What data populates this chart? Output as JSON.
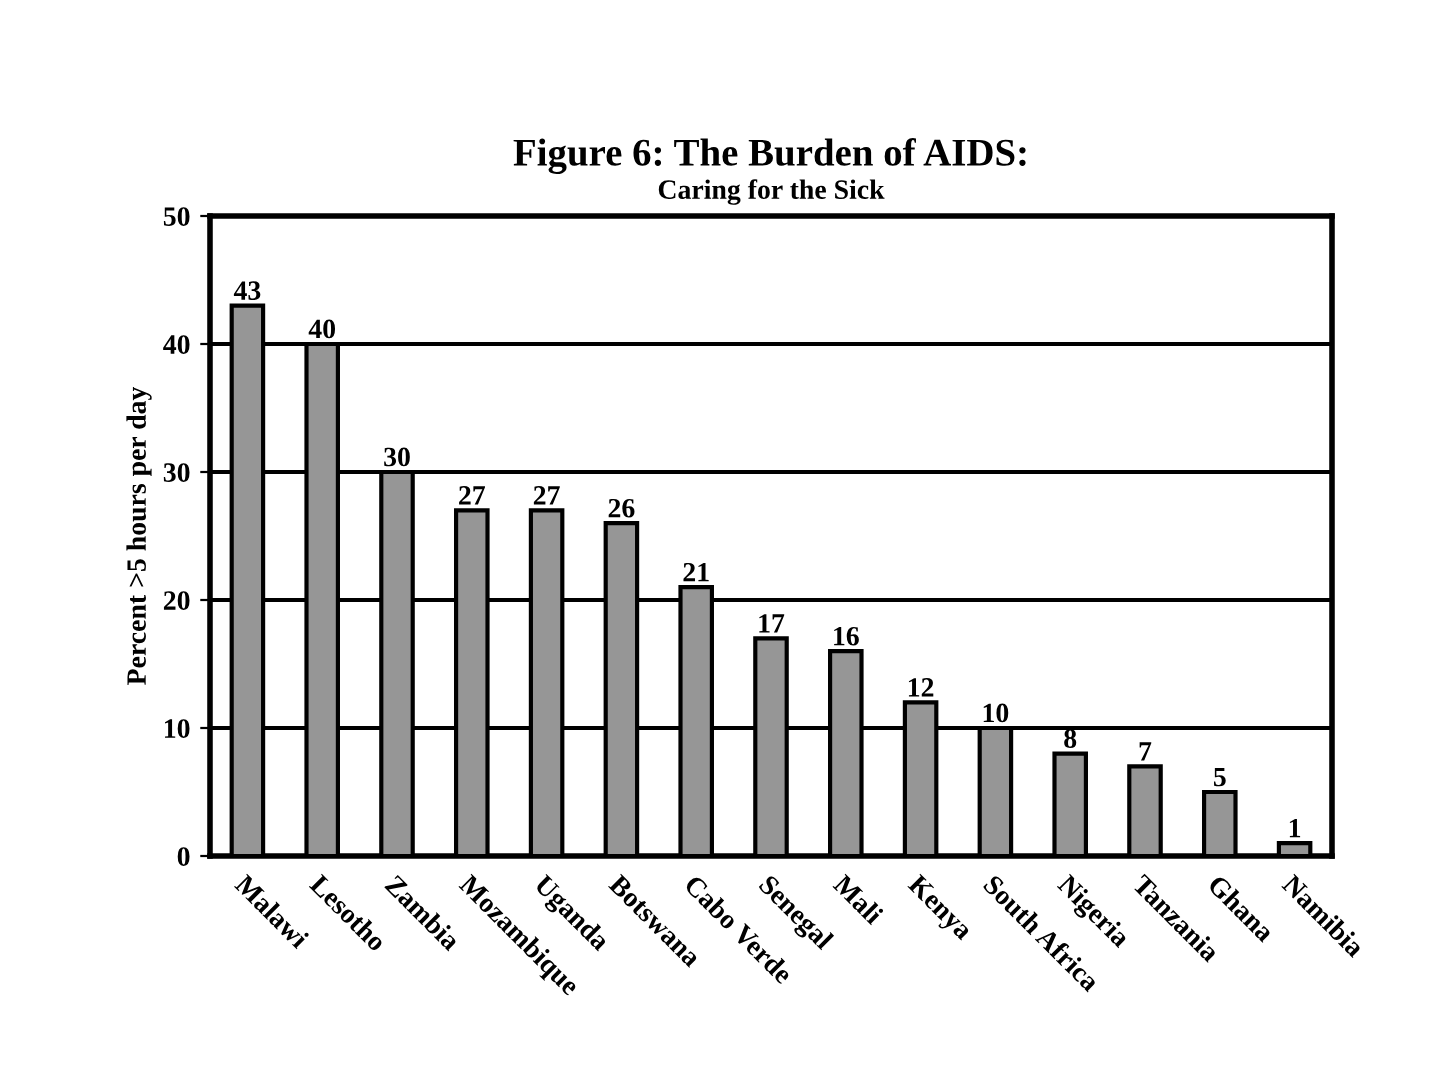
{
  "chart_data": {
    "type": "bar",
    "title": "Figure 6: The Burden of AIDS:",
    "subtitle": "Caring for the Sick",
    "ylabel": "Percent >5 hours per day",
    "categories": [
      "Malawi",
      "Lesotho",
      "Zambia",
      "Mozambique",
      "Uganda",
      "Botswana",
      "Cabo Verde",
      "Senegal",
      "Mali",
      "Kenya",
      "South Africa",
      "Nigeria",
      "Tanzania",
      "Ghana",
      "Namibia"
    ],
    "values": [
      43,
      40,
      30,
      27,
      27,
      26,
      21,
      17,
      16,
      12,
      10,
      8,
      7,
      5,
      1
    ],
    "color": "#969696",
    "ylim": [
      0,
      50
    ],
    "yticks": [
      0,
      10,
      20,
      30,
      40,
      50
    ],
    "grid": "y",
    "data_labels": true
  }
}
